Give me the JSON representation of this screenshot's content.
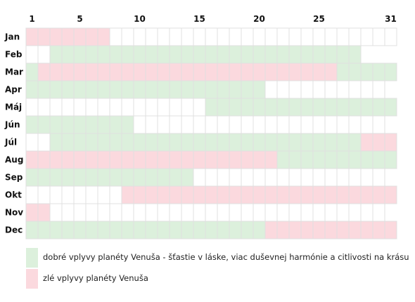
{
  "chart_data": {
    "type": "heatmap",
    "x_ticks": [
      1,
      5,
      10,
      15,
      20,
      25,
      31
    ],
    "days_shown": 31,
    "months": [
      {
        "label": "Jan",
        "days": 31,
        "segments": [
          {
            "from": 1,
            "to": 7,
            "status": "bad"
          }
        ]
      },
      {
        "label": "Feb",
        "days": 28,
        "segments": [
          {
            "from": 3,
            "to": 28,
            "status": "good"
          }
        ]
      },
      {
        "label": "Mar",
        "days": 31,
        "segments": [
          {
            "from": 1,
            "to": 1,
            "status": "good"
          },
          {
            "from": 2,
            "to": 26,
            "status": "bad"
          },
          {
            "from": 27,
            "to": 31,
            "status": "good"
          }
        ]
      },
      {
        "label": "Apr",
        "days": 30,
        "segments": [
          {
            "from": 1,
            "to": 20,
            "status": "good"
          }
        ]
      },
      {
        "label": "Máj",
        "days": 31,
        "segments": [
          {
            "from": 16,
            "to": 31,
            "status": "good"
          }
        ]
      },
      {
        "label": "Jún",
        "days": 30,
        "segments": [
          {
            "from": 1,
            "to": 9,
            "status": "good"
          }
        ]
      },
      {
        "label": "Júl",
        "days": 31,
        "segments": [
          {
            "from": 3,
            "to": 28,
            "status": "good"
          },
          {
            "from": 29,
            "to": 31,
            "status": "bad"
          }
        ]
      },
      {
        "label": "Aug",
        "days": 31,
        "segments": [
          {
            "from": 1,
            "to": 21,
            "status": "bad"
          },
          {
            "from": 22,
            "to": 31,
            "status": "good"
          }
        ]
      },
      {
        "label": "Sep",
        "days": 30,
        "segments": [
          {
            "from": 1,
            "to": 14,
            "status": "good"
          }
        ]
      },
      {
        "label": "Okt",
        "days": 31,
        "segments": [
          {
            "from": 9,
            "to": 31,
            "status": "bad"
          }
        ]
      },
      {
        "label": "Nov",
        "days": 30,
        "segments": [
          {
            "from": 1,
            "to": 2,
            "status": "bad"
          }
        ]
      },
      {
        "label": "Dec",
        "days": 31,
        "segments": [
          {
            "from": 1,
            "to": 20,
            "status": "good"
          },
          {
            "from": 21,
            "to": 31,
            "status": "bad"
          }
        ]
      }
    ],
    "colors": {
      "good": "#dcf0dc",
      "bad": "#fbd9de",
      "empty": "#ffffff",
      "grid": "#e0e0e0"
    },
    "legend": [
      {
        "status": "good",
        "label": "dobré vplyvy planéty Venuša - šťastie v láske, viac duševnej harmónie a citlivosti na krásu"
      },
      {
        "status": "bad",
        "label": "zlé vplyvy planéty Venuša"
      }
    ]
  }
}
